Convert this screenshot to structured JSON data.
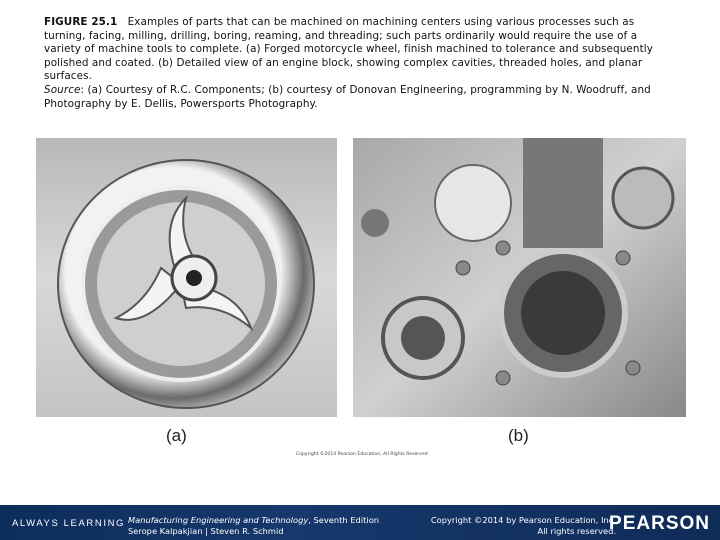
{
  "caption": {
    "label": "FIGURE 25.1",
    "text": "Examples of parts that can be machined on machining centers using various processes such as turning, facing, milling, drilling, boring, reaming, and threading; such parts ordinarily would require the use of a variety of machine tools to complete. (a) Forged motorcycle wheel, finish machined to tolerance and subsequently polished and coated. (b) Detailed view of an engine block, showing complex cavities, threaded holes, and planar surfaces.",
    "source_label": "Source",
    "source_text": ": (a) Courtesy of R.C. Components; (b) courtesy of Donovan Engineering, programming by N. Woodruff, and Photography by E. Dellis, Powersports Photography."
  },
  "figure": {
    "panels": [
      {
        "label": "(a)"
      },
      {
        "label": "(b)"
      }
    ],
    "image_credit": "Copyright ©2014 Pearson Education, All Rights Reserved"
  },
  "footer": {
    "tagline": "ALWAYS LEARNING",
    "book_title": "Manufacturing Engineering and Technology",
    "edition": ", Seventh Edition",
    "authors": "Serope Kalpakjian | Steven R. Schmid",
    "copyright": "Copyright ©2014 by Pearson Education, Inc.",
    "rights": "All rights reserved.",
    "logo": "PEARSON"
  }
}
